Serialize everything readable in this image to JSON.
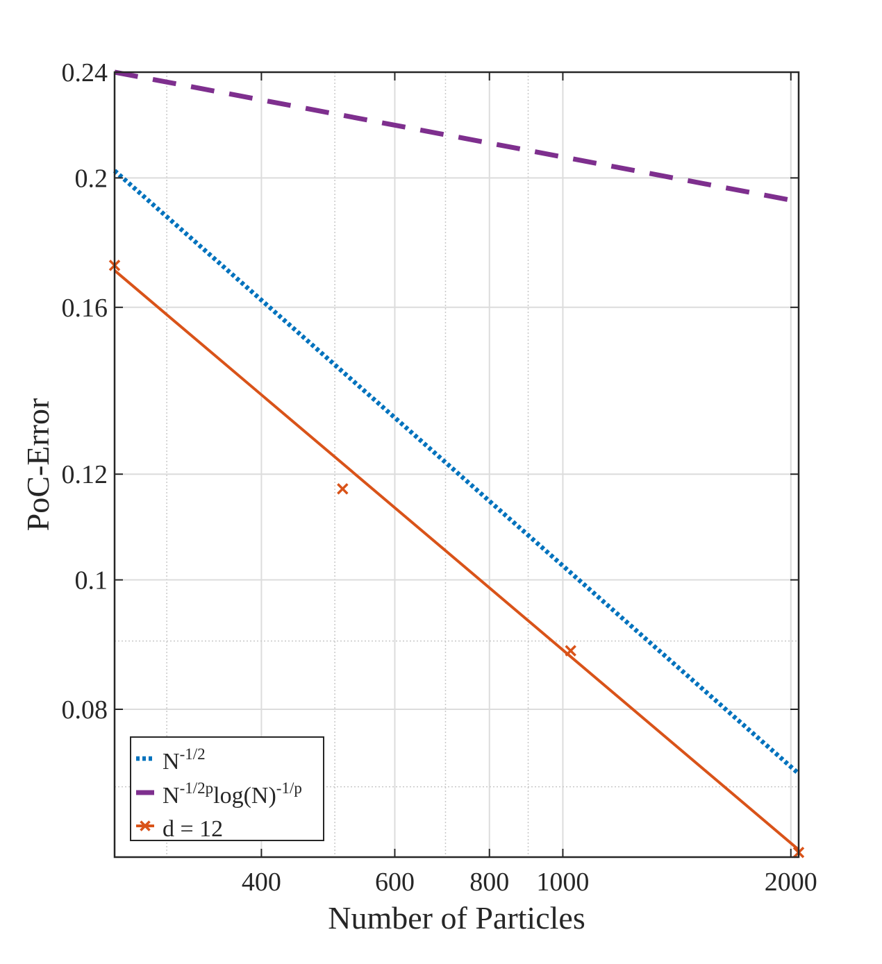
{
  "chart_data": {
    "type": "line",
    "xscale": "log",
    "yscale": "log",
    "xlabel": "Number of Particles",
    "ylabel": "PoC-Error",
    "xlim": [
      256,
      2048
    ],
    "ylim": [
      0.062,
      0.24
    ],
    "xticks": [
      400,
      600,
      800,
      1000,
      2000
    ],
    "xtick_labels": [
      "400",
      "600",
      "800",
      "1000",
      "2000"
    ],
    "yticks": [
      0.08,
      0.1,
      0.12,
      0.16,
      0.2,
      0.24
    ],
    "ytick_labels": [
      "0.08",
      "0.1",
      "0.12",
      "0.16",
      "0.2",
      "0.24"
    ],
    "x_minor_grid": [
      300,
      500,
      700,
      900
    ],
    "y_minor_grid": [
      0.07,
      0.09
    ],
    "grid": true,
    "legend_position": "bottom-left",
    "series": [
      {
        "name": "N^{-1/2}",
        "style": "dotted",
        "color": "#0072BD",
        "x": [
          256,
          2048
        ],
        "y": [
          0.2025,
          0.0716
        ]
      },
      {
        "name": "N^{-1/2p}log(N)^{-1/p}",
        "style": "dashed",
        "color": "#7E2F8E",
        "x": [
          256,
          2048
        ],
        "y": [
          0.24,
          0.192
        ]
      },
      {
        "name": "d = 12",
        "style": "solid",
        "marker": "x",
        "color": "#D95319",
        "x": [
          256,
          512,
          1024,
          2048
        ],
        "y": [
          0.172,
          0.117,
          0.0885,
          0.0625
        ],
        "fit_y": [
          0.1705,
          0.0628
        ]
      }
    ],
    "legend": [
      {
        "base": "N",
        "sup": "-1/2",
        "mid": "",
        "sup2": ""
      },
      {
        "base": "N",
        "sup": "-1/2p",
        "mid": "log(N)",
        "sup2": "-1/p"
      },
      {
        "base": "d = 12",
        "sup": "",
        "mid": "",
        "sup2": ""
      }
    ]
  }
}
